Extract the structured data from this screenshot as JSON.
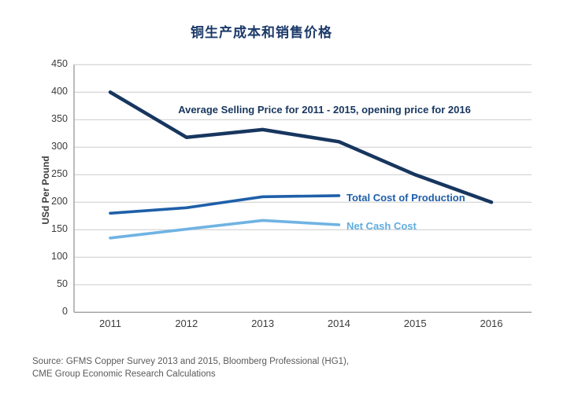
{
  "title": "铜生产成本和销售价格",
  "chart_data": {
    "type": "line",
    "x": [
      2011,
      2012,
      2013,
      2014,
      2015,
      2016
    ],
    "xticks": [
      "2011",
      "2012",
      "2013",
      "2014",
      "2015",
      "2016"
    ],
    "yticks": [
      0,
      50,
      100,
      150,
      200,
      250,
      300,
      350,
      400,
      450
    ],
    "ylim": [
      0,
      450
    ],
    "ylabel": "USd Per Pound",
    "xlabel": "",
    "grid": "horizontal",
    "legend_position": "inline-annotations",
    "series": [
      {
        "name": "Average Selling Price for 2011 - 2015, opening price for 2016",
        "color": "#17365f",
        "stroke_width": 4.5,
        "x": [
          2011,
          2012,
          2013,
          2014,
          2015,
          2016
        ],
        "values": [
          400,
          318,
          332,
          310,
          250,
          200
        ]
      },
      {
        "name": "Total Cost of Production",
        "color": "#1e5fa9",
        "stroke_width": 3.6,
        "x": [
          2011,
          2012,
          2013,
          2014
        ],
        "values": [
          180,
          190,
          210,
          212
        ]
      },
      {
        "name": "Net Cash Cost",
        "color": "#6fb3e3",
        "stroke_width": 3.6,
        "x": [
          2011,
          2012,
          2013,
          2014
        ],
        "values": [
          135,
          151,
          167,
          159
        ]
      }
    ]
  },
  "colors": {
    "title": "#1c3a69",
    "gridline": "#cccccc",
    "axis": "#9e9e9e",
    "tick_text": "#3c3c3c",
    "source_text": "#5a5a5a"
  },
  "source": {
    "line1": "Source: GFMS Copper Survey 2013 and 2015, Bloomberg Professional (HG1),",
    "line2": "CME Group Economic Research Calculations"
  }
}
